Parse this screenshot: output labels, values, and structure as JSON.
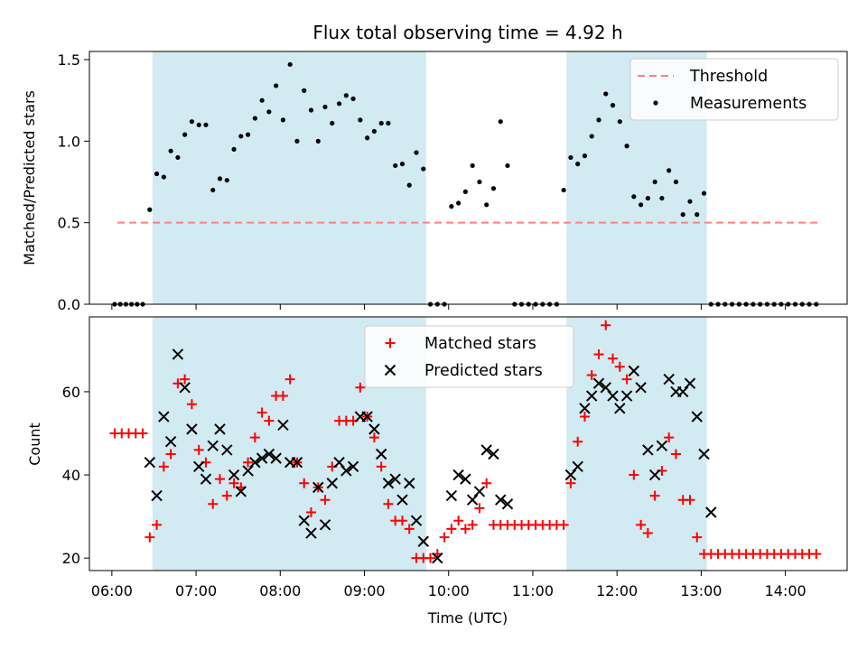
{
  "chart_data": [
    {
      "type": "scatter",
      "title": "Flux total observing time = 4.92 h",
      "ylabel": "Matched/Predicted stars",
      "xlabel": "",
      "xlim": [
        "05:44",
        "14:44"
      ],
      "ylim": [
        0,
        1.55
      ],
      "yticks": [
        "0.0",
        "0.5",
        "1.0",
        "1.5"
      ],
      "legend_position": "upper right",
      "shaded_intervals": [
        [
          "06:29",
          "09:44"
        ],
        [
          "11:24",
          "13:04"
        ]
      ],
      "shade_color": "#add8e6",
      "series": [
        {
          "name": "Threshold",
          "style": "dashed-line",
          "color": "#ff7f7f",
          "x": [
            "06:04",
            "14:24"
          ],
          "values": [
            0.5,
            0.5
          ]
        },
        {
          "name": "Measurements",
          "style": "dot",
          "color": "#000000",
          "x": [
            "06:02",
            "06:06",
            "06:10",
            "06:14",
            "06:18",
            "06:22",
            "06:27",
            "06:32",
            "06:37",
            "06:42",
            "06:47",
            "06:52",
            "06:57",
            "07:02",
            "07:07",
            "07:12",
            "07:17",
            "07:22",
            "07:27",
            "07:32",
            "07:37",
            "07:42",
            "07:47",
            "07:52",
            "07:57",
            "08:02",
            "08:07",
            "08:12",
            "08:17",
            "08:22",
            "08:27",
            "08:32",
            "08:37",
            "08:42",
            "08:47",
            "08:52",
            "08:57",
            "09:02",
            "09:07",
            "09:12",
            "09:17",
            "09:22",
            "09:27",
            "09:32",
            "09:37",
            "09:42",
            "09:47",
            "09:52",
            "09:57",
            "10:02",
            "10:07",
            "10:12",
            "10:17",
            "10:22",
            "10:27",
            "10:32",
            "10:37",
            "10:42",
            "10:47",
            "10:52",
            "10:57",
            "11:02",
            "11:07",
            "11:12",
            "11:17",
            "11:22",
            "11:27",
            "11:32",
            "11:37",
            "11:42",
            "11:47",
            "11:52",
            "11:57",
            "12:02",
            "12:07",
            "12:12",
            "12:17",
            "12:22",
            "12:27",
            "12:32",
            "12:37",
            "12:42",
            "12:47",
            "12:52",
            "12:57",
            "13:02",
            "13:07",
            "13:12",
            "13:17",
            "13:22",
            "13:27",
            "13:32",
            "13:37",
            "13:42",
            "13:47",
            "13:52",
            "13:57",
            "14:02",
            "14:07",
            "14:12",
            "14:17",
            "14:22"
          ],
          "values": [
            0,
            0,
            0,
            0,
            0,
            0,
            0.58,
            0.8,
            0.78,
            0.94,
            0.9,
            1.04,
            1.12,
            1.1,
            1.1,
            0.7,
            0.77,
            0.76,
            0.95,
            1.03,
            1.04,
            1.14,
            1.25,
            1.18,
            1.34,
            1.13,
            1.47,
            1.0,
            1.31,
            1.19,
            1.0,
            1.21,
            1.11,
            1.23,
            1.28,
            1.26,
            1.13,
            1.02,
            1.06,
            1.11,
            1.11,
            0.85,
            0.86,
            0.73,
            0.93,
            0.83,
            0,
            0,
            0,
            0.6,
            0.62,
            0.69,
            0.85,
            0.75,
            0.61,
            0.71,
            1.12,
            0.85,
            0,
            0,
            0,
            0,
            0,
            0,
            0,
            0.7,
            0.9,
            0.86,
            0.91,
            1.03,
            1.13,
            1.29,
            1.22,
            1.12,
            0.97,
            0.66,
            0.61,
            0.65,
            0.75,
            0.65,
            0.82,
            0.75,
            0.55,
            0.63,
            0.55,
            0.68,
            0,
            0,
            0,
            0,
            0,
            0,
            0,
            0,
            0,
            0,
            0,
            0,
            0,
            0,
            0,
            0
          ]
        }
      ]
    },
    {
      "type": "scatter",
      "title": "",
      "ylabel": "Count",
      "xlabel": "Time (UTC)",
      "xlim": [
        "05:44",
        "14:44"
      ],
      "ylim": [
        17,
        78
      ],
      "yticks": [
        "20",
        "40",
        "60"
      ],
      "xticks": [
        "06:00",
        "07:00",
        "08:00",
        "09:00",
        "10:00",
        "11:00",
        "12:00",
        "13:00",
        "14:00"
      ],
      "legend_position": "upper center",
      "shaded_intervals": [
        [
          "06:29",
          "09:44"
        ],
        [
          "11:24",
          "13:04"
        ]
      ],
      "shade_color": "#add8e6",
      "series": [
        {
          "name": "Matched stars",
          "style": "plus",
          "color": "#ff0000",
          "x": [
            "06:02",
            "06:07",
            "06:12",
            "06:17",
            "06:22",
            "06:27",
            "06:32",
            "06:37",
            "06:42",
            "06:47",
            "06:52",
            "06:57",
            "07:02",
            "07:07",
            "07:12",
            "07:17",
            "07:22",
            "07:27",
            "07:32",
            "07:37",
            "07:42",
            "07:47",
            "07:52",
            "07:57",
            "08:02",
            "08:07",
            "08:12",
            "08:17",
            "08:22",
            "08:27",
            "08:32",
            "08:37",
            "08:42",
            "08:47",
            "08:52",
            "08:57",
            "09:02",
            "09:07",
            "09:12",
            "09:17",
            "09:22",
            "09:27",
            "09:32",
            "09:37",
            "09:42",
            "09:47",
            "09:52",
            "09:57",
            "10:02",
            "10:07",
            "10:12",
            "10:17",
            "10:22",
            "10:27",
            "10:32",
            "10:37",
            "10:42",
            "10:47",
            "10:52",
            "10:57",
            "11:02",
            "11:07",
            "11:12",
            "11:17",
            "11:22",
            "11:27",
            "11:32",
            "11:37",
            "11:42",
            "11:47",
            "11:52",
            "11:57",
            "12:02",
            "12:07",
            "12:12",
            "12:17",
            "12:22",
            "12:27",
            "12:32",
            "12:37",
            "12:42",
            "12:47",
            "12:52",
            "12:57",
            "13:02",
            "13:07",
            "13:12",
            "13:17",
            "13:22",
            "13:27",
            "13:32",
            "13:37",
            "13:42",
            "13:47",
            "13:52",
            "13:57",
            "14:02",
            "14:07",
            "14:12",
            "14:17",
            "14:22"
          ],
          "values": [
            50,
            50,
            50,
            50,
            50,
            25,
            28,
            42,
            45,
            62,
            63,
            57,
            46,
            43,
            33,
            39,
            35,
            38,
            37,
            43,
            49,
            55,
            53,
            59,
            59,
            63,
            43,
            38,
            31,
            37,
            34,
            42,
            53,
            53,
            53,
            61,
            54,
            49,
            42,
            33,
            29,
            29,
            27,
            20,
            20,
            20,
            21,
            25,
            27,
            29,
            27,
            28,
            32,
            38,
            28,
            28,
            28,
            28,
            28,
            28,
            28,
            28,
            28,
            28,
            28,
            38,
            48,
            54,
            64,
            69,
            76,
            68,
            66,
            63,
            40,
            28,
            26,
            35,
            41,
            49,
            45,
            34,
            34,
            25,
            21,
            21,
            21,
            21,
            21,
            21,
            21,
            21,
            21,
            21,
            21,
            21,
            21,
            21,
            21,
            21,
            21
          ]
        },
        {
          "name": "Predicted stars",
          "style": "x",
          "color": "#000000",
          "x": [
            "06:27",
            "06:32",
            "06:37",
            "06:42",
            "06:47",
            "06:52",
            "06:57",
            "07:02",
            "07:07",
            "07:12",
            "07:17",
            "07:22",
            "07:27",
            "07:32",
            "07:37",
            "07:42",
            "07:47",
            "07:52",
            "07:57",
            "08:02",
            "08:07",
            "08:12",
            "08:17",
            "08:22",
            "08:27",
            "08:32",
            "08:37",
            "08:42",
            "08:47",
            "08:52",
            "08:57",
            "09:02",
            "09:07",
            "09:12",
            "09:17",
            "09:22",
            "09:27",
            "09:32",
            "09:37",
            "09:42",
            "09:52",
            "10:02",
            "10:07",
            "10:12",
            "10:17",
            "10:22",
            "10:27",
            "10:32",
            "10:37",
            "10:42",
            "11:27",
            "11:32",
            "11:37",
            "11:42",
            "11:47",
            "11:52",
            "11:57",
            "12:02",
            "12:07",
            "12:12",
            "12:17",
            "12:22",
            "12:27",
            "12:32",
            "12:37",
            "12:42",
            "12:47",
            "12:52",
            "12:57",
            "13:02",
            "13:07"
          ],
          "values": [
            43,
            35,
            54,
            48,
            69,
            61,
            51,
            42,
            39,
            47,
            51,
            46,
            40,
            36,
            41,
            43,
            44,
            45,
            44,
            52,
            43,
            43,
            29,
            26,
            37,
            28,
            38,
            43,
            41,
            42,
            54,
            54,
            51,
            45,
            38,
            39,
            34,
            38,
            29,
            24,
            20,
            35,
            40,
            39,
            34,
            36,
            46,
            45,
            34,
            33,
            40,
            42,
            56,
            59,
            62,
            61,
            59,
            56,
            59,
            65,
            61,
            46,
            40,
            47,
            63,
            60,
            60,
            62,
            54,
            45,
            31
          ]
        }
      ]
    }
  ]
}
